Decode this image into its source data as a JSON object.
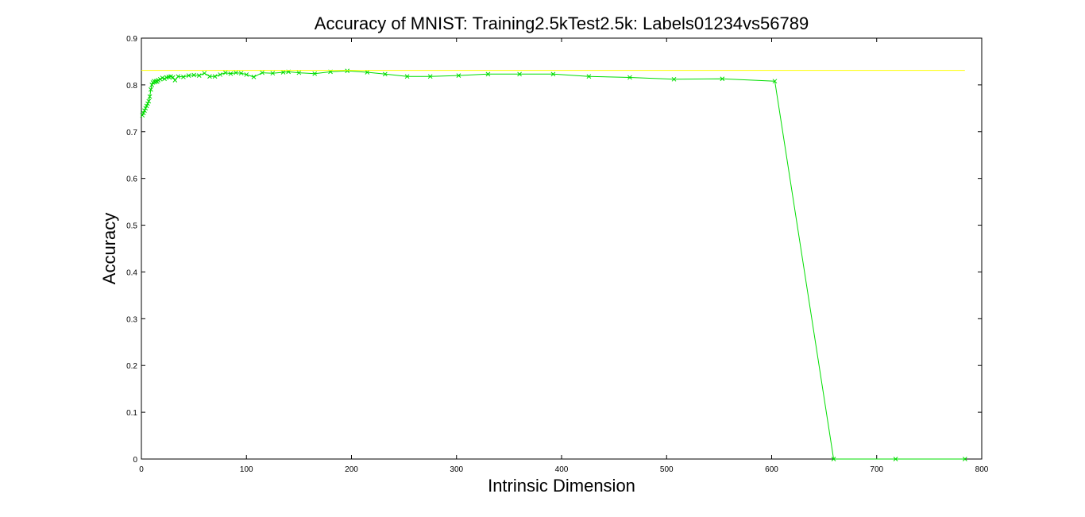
{
  "chart_data": {
    "type": "line",
    "title": "Accuracy of MNIST: Training2.5kTest2.5k: Labels01234vs56789",
    "xlabel": "Intrinsic Dimension",
    "ylabel": "Accuracy",
    "xlim": [
      0,
      800
    ],
    "ylim": [
      0,
      0.9
    ],
    "xticks": [
      0,
      100,
      200,
      300,
      400,
      500,
      600,
      700,
      800
    ],
    "yticks": [
      0,
      0.1,
      0.2,
      0.3,
      0.4,
      0.5,
      0.6,
      0.7,
      0.8,
      0.9
    ],
    "xtick_labels": [
      "0",
      "100",
      "200",
      "300",
      "400",
      "500",
      "600",
      "700",
      "800"
    ],
    "ytick_labels": [
      "0",
      "0.1",
      "0.2",
      "0.3",
      "0.4",
      "0.5",
      "0.6",
      "0.7",
      "0.8",
      "0.9"
    ],
    "grid": false,
    "series": [
      {
        "color": "#00dd00",
        "marker": "x",
        "points": [
          [
            1,
            0.735
          ],
          [
            2,
            0.74
          ],
          [
            3,
            0.745
          ],
          [
            4,
            0.75
          ],
          [
            5,
            0.755
          ],
          [
            6,
            0.76
          ],
          [
            7,
            0.765
          ],
          [
            8,
            0.775
          ],
          [
            9,
            0.79
          ],
          [
            10,
            0.8
          ],
          [
            11,
            0.805
          ],
          [
            12,
            0.808
          ],
          [
            13,
            0.806
          ],
          [
            14,
            0.808
          ],
          [
            15,
            0.807
          ],
          [
            16,
            0.81
          ],
          [
            18,
            0.812
          ],
          [
            20,
            0.815
          ],
          [
            22,
            0.813
          ],
          [
            24,
            0.816
          ],
          [
            26,
            0.817
          ],
          [
            28,
            0.818
          ],
          [
            30,
            0.816
          ],
          [
            32,
            0.81
          ],
          [
            35,
            0.818
          ],
          [
            40,
            0.817
          ],
          [
            45,
            0.82
          ],
          [
            50,
            0.821
          ],
          [
            55,
            0.82
          ],
          [
            60,
            0.825
          ],
          [
            65,
            0.818
          ],
          [
            70,
            0.818
          ],
          [
            75,
            0.822
          ],
          [
            80,
            0.826
          ],
          [
            85,
            0.824
          ],
          [
            90,
            0.826
          ],
          [
            95,
            0.825
          ],
          [
            100,
            0.822
          ],
          [
            107,
            0.817
          ],
          [
            115,
            0.826
          ],
          [
            125,
            0.825
          ],
          [
            135,
            0.827
          ],
          [
            140,
            0.828
          ],
          [
            150,
            0.826
          ],
          [
            165,
            0.824
          ],
          [
            180,
            0.828
          ],
          [
            196,
            0.83
          ],
          [
            215,
            0.827
          ],
          [
            232,
            0.823
          ],
          [
            253,
            0.818
          ],
          [
            275,
            0.818
          ],
          [
            302,
            0.82
          ],
          [
            330,
            0.823
          ],
          [
            360,
            0.823
          ],
          [
            392,
            0.823
          ],
          [
            426,
            0.818
          ],
          [
            465,
            0.816
          ],
          [
            507,
            0.812
          ],
          [
            553,
            0.813
          ],
          [
            603,
            0.808
          ],
          [
            659,
            0.0
          ],
          [
            718,
            0.0
          ],
          [
            784,
            0.0
          ]
        ]
      },
      {
        "color": "#ffff00",
        "marker": "none",
        "points": [
          [
            0,
            0.831
          ],
          [
            784,
            0.831
          ]
        ]
      }
    ]
  }
}
